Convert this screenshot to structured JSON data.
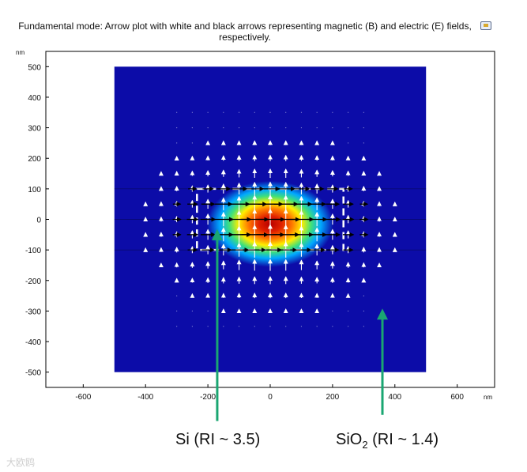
{
  "title": "Fundamental mode: Arrow plot with white and black arrows representing magnetic (B) and electric (E) fields, respectively.",
  "chart_data": {
    "type": "heatmap",
    "title": "Fundamental mode: Arrow plot with white and black arrows representing magnetic (B) and electric (E) fields, respectively.",
    "x_unit": "nm",
    "y_unit": "nm",
    "xlim": [
      -720,
      720
    ],
    "ylim": [
      -550,
      550
    ],
    "x_ticks": [
      -600,
      -400,
      -200,
      0,
      200,
      400,
      600
    ],
    "y_ticks": [
      500,
      400,
      300,
      200,
      100,
      0,
      -100,
      -200,
      -300,
      -400,
      -500
    ],
    "field_domain": {
      "x": [
        -500,
        500
      ],
      "y": [
        -500,
        500
      ]
    },
    "mode_center": [
      0,
      -15
    ],
    "colors": {
      "background": "#0c0ca8",
      "dashed_box": "#ffffff",
      "arrow_electric": "#000000",
      "arrow_magnetic": "#ffffff",
      "annotation_arrow": "#1aa672"
    },
    "core_box": {
      "x": [
        -235,
        235
      ],
      "y": [
        -100,
        100
      ]
    },
    "annotations": [
      {
        "label": "Si (RI ~ 3.5)",
        "tip": [
          -170,
          -50
        ],
        "tail": [
          -170,
          -660
        ]
      },
      {
        "label": "SiO2 (RI ~ 1.4)",
        "tip": [
          360,
          -310
        ],
        "tail": [
          360,
          -640
        ]
      }
    ]
  },
  "annotation_labels": {
    "si": "Si (RI ~ 3.5)",
    "sio2_main": "SiO",
    "sio2_sub": "2",
    "sio2_rest": " (RI ~ 1.4)"
  },
  "watermark": "大欧鸥",
  "legend_icon": "image-icon"
}
